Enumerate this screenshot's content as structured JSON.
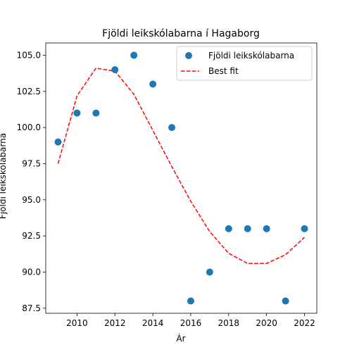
{
  "chart_data": {
    "type": "scatter",
    "title": "Fjöldi leikskólabarna í Hagaborg",
    "xlabel": "Ár",
    "ylabel": "Fjöldi leikskólabarna",
    "xlim": [
      2008.35,
      2022.65
    ],
    "ylim": [
      87.15,
      105.85
    ],
    "xticks": [
      2010,
      2012,
      2014,
      2016,
      2018,
      2020,
      2022
    ],
    "yticks": [
      87.5,
      90.0,
      92.5,
      95.0,
      97.5,
      100.0,
      102.5,
      105.0
    ],
    "ytick_labels": [
      "87.5",
      "90.0",
      "92.5",
      "95.0",
      "97.5",
      "100.0",
      "102.5",
      "105.0"
    ],
    "grid": false,
    "legend_position": "top-right",
    "series": [
      {
        "name": "Fjöldi leikskólabarna",
        "type": "scatter",
        "color": "#1f77b4",
        "x": [
          2009,
          2010,
          2011,
          2012,
          2013,
          2014,
          2015,
          2016,
          2017,
          2018,
          2019,
          2020,
          2021,
          2022
        ],
        "y": [
          99,
          101,
          101,
          104,
          105,
          103,
          100,
          88,
          90,
          93,
          93,
          93,
          88,
          93
        ]
      },
      {
        "name": "Best fit",
        "type": "line",
        "style": "dashed",
        "color": "#ff0000",
        "x": [
          2009,
          2010,
          2011,
          2012,
          2013,
          2014,
          2015,
          2016,
          2017,
          2018,
          2019,
          2020,
          2021,
          2022
        ],
        "y": [
          97.5,
          102.2,
          104.1,
          103.9,
          102.3,
          99.8,
          97.3,
          94.9,
          92.8,
          91.3,
          90.6,
          90.6,
          91.2,
          92.4
        ]
      }
    ]
  }
}
